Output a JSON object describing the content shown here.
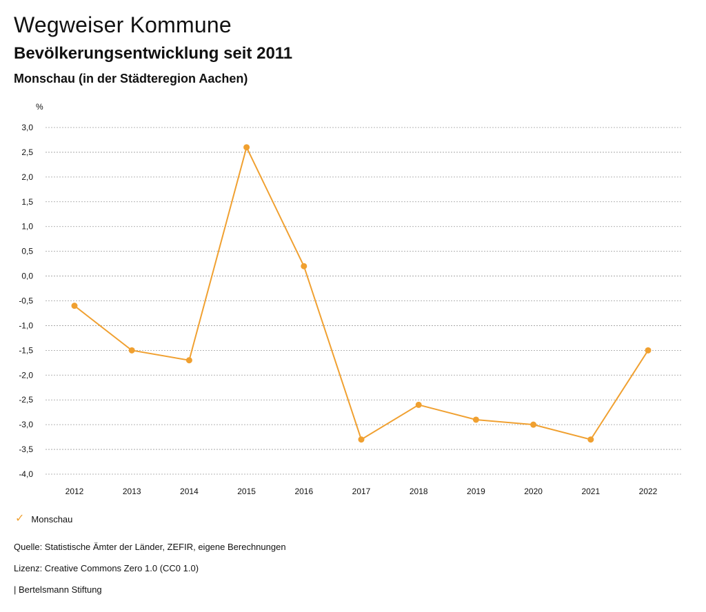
{
  "header": {
    "title": "Wegweiser Kommune",
    "subtitle": "Bevölkerungsentwicklung seit 2011",
    "region": "Monschau (in der Städteregion Aachen)"
  },
  "chart_data": {
    "type": "line",
    "title": "Bevölkerungsentwicklung seit 2011",
    "ylabel": "%",
    "xlabel": "",
    "categories": [
      "2012",
      "2013",
      "2014",
      "2015",
      "2016",
      "2017",
      "2018",
      "2019",
      "2020",
      "2021",
      "2022"
    ],
    "series": [
      {
        "name": "Monschau",
        "color": "#f0a030",
        "values": [
          -0.6,
          -1.5,
          -1.7,
          2.6,
          0.2,
          -3.3,
          -2.6,
          -2.9,
          -3.0,
          -3.3,
          -1.5
        ]
      }
    ],
    "ylim": [
      -4.0,
      3.0
    ],
    "yticks": [
      3.0,
      2.5,
      2.0,
      1.5,
      1.0,
      0.5,
      0.0,
      -0.5,
      -1.0,
      -1.5,
      -2.0,
      -2.5,
      -3.0,
      -3.5,
      -4.0
    ],
    "ytick_labels": [
      "3,0",
      "2,5",
      "2,0",
      "1,5",
      "1,0",
      "0,5",
      "0,0",
      "-0,5",
      "-1,0",
      "-1,5",
      "-2,0",
      "-2,5",
      "-3,0",
      "-3,5",
      "-4,0"
    ],
    "grid": true,
    "legend_position": "bottom-left"
  },
  "legend": {
    "icon": "check-icon",
    "label": "Monschau"
  },
  "footer": {
    "source": "Quelle: Statistische Ämter der Länder, ZEFIR, eigene Berechnungen",
    "license": "Lizenz: Creative Commons Zero 1.0 (CC0 1.0)",
    "publisher": "| Bertelsmann Stiftung"
  }
}
